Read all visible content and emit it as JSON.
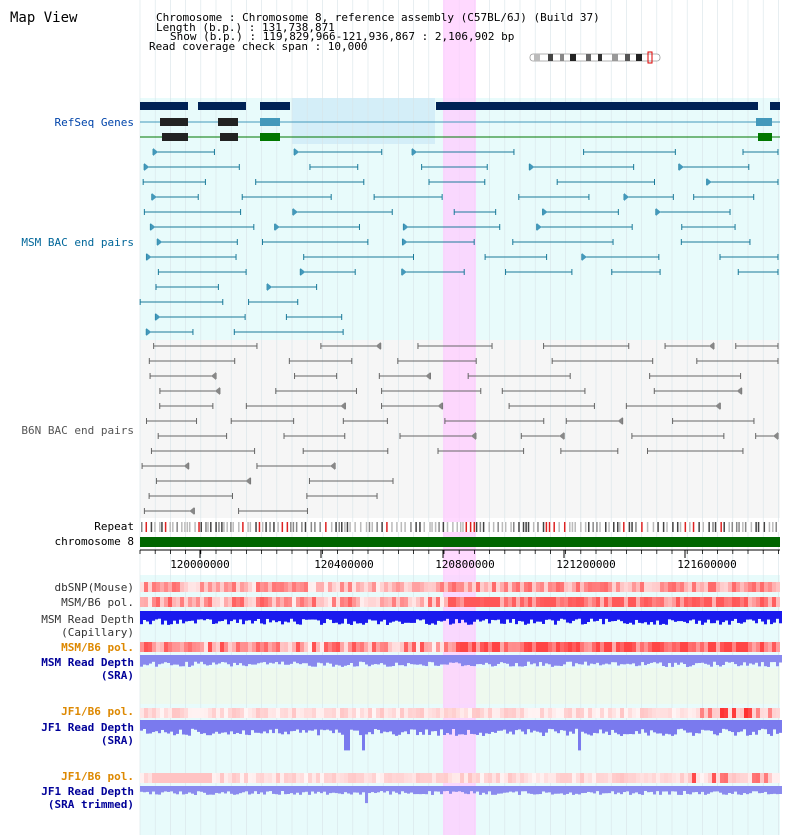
{
  "title": "Map View",
  "info": {
    "lines": [
      "Chromosome    : Chromosome 8, reference assembly (C57BL/6J) (Build 37)",
      "Length (b.p.) : 131,738,871",
      "Show (b.p.) : 119,829,966-121,936,867 : 2,106,902 bp",
      "Read coverage check span : 10,000"
    ]
  },
  "tracks": {
    "refseq": "RefSeq Genes",
    "msm_bac": "MSM BAC end pairs",
    "b6n_bac": "B6N BAC end pairs",
    "repeat": "Repeat",
    "chromosome": "chromosome 8",
    "dbsnp": "dbSNP(Mouse)",
    "msm_b6_pol": "MSM/B6 pol.",
    "msm_depth_cap_1": "MSM Read Depth",
    "msm_depth_cap_2": "(Capillary)",
    "msm_b6_pol_2": "MSM/B6 pol.",
    "msm_depth_sra_1": "MSM Read Depth",
    "msm_depth_sra_2": "(SRA)",
    "jf1_b6_pol": "JF1/B6 pol.",
    "jf1_depth_sra_1": "JF1 Read Depth",
    "jf1_depth_sra_2": "(SRA)",
    "jf1_b6_pol_2": "JF1/B6 pol.",
    "jf1_depth_trim_1": "JF1 Read Depth",
    "jf1_depth_trim_2": "(SRA trimmed)"
  },
  "axis": {
    "ticks": [
      "120000000",
      "120400000",
      "120800000",
      "121200000",
      "121600000"
    ]
  },
  "colors": {
    "refseq_label": "#0044aa",
    "msm_label": "#006699",
    "b6n_label": "#555555",
    "pol_orange": "#dd8800",
    "depth_blue": "#000099",
    "panel_cyan": "#e8fbfb",
    "panel_gray": "#f6f6f6",
    "highlight": "#ffccff",
    "refseq_dark": "#002255",
    "refseq_teal": "#4499bb",
    "refseq_green": "#007700",
    "msm_line": "#1a7a9a",
    "b6n_line": "#666666",
    "chrom_bar": "#006600"
  }
}
